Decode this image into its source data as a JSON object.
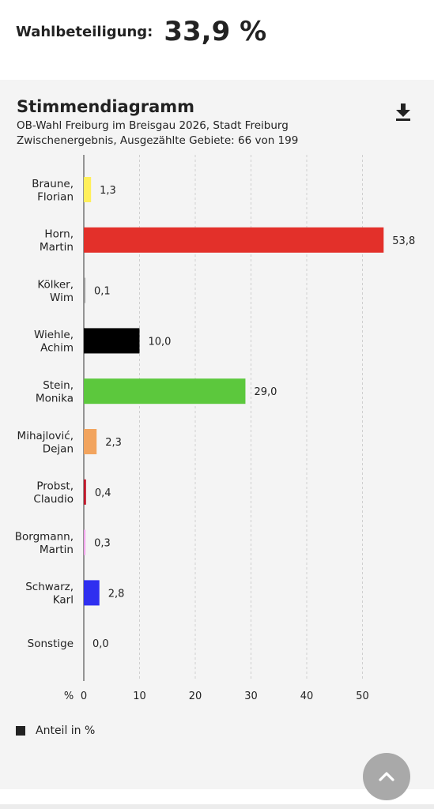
{
  "turnout": {
    "label": "Wahlbeteiligung:",
    "value": "33,9 %"
  },
  "card": {
    "title": "Stimmendiagramm",
    "subtitle_line1": "OB-Wahl Freiburg im Breisgau 2026, Stadt Freiburg",
    "subtitle_line2": "Zwischenergebnis, Ausgezählte Gebiete: 66 von 199",
    "download_icon": "download-icon",
    "scroll_top_icon": "chevron-up-icon"
  },
  "legend": {
    "label": "Anteil in %"
  },
  "chart_data": {
    "type": "bar",
    "orientation": "horizontal",
    "categories": [
      [
        "Braune,",
        "Florian"
      ],
      [
        "Horn,",
        "Martin"
      ],
      [
        "Kölker,",
        "Wim"
      ],
      [
        "Wiehle,",
        "Achim"
      ],
      [
        "Stein,",
        "Monika"
      ],
      [
        "Mihajlović,",
        "Dejan"
      ],
      [
        "Probst,",
        "Claudio"
      ],
      [
        "Borgmann,",
        "Martin"
      ],
      [
        "Schwarz,",
        "Karl"
      ],
      [
        "Sonstige"
      ]
    ],
    "values": [
      1.3,
      53.8,
      0.1,
      10.0,
      29.0,
      2.3,
      0.4,
      0.3,
      2.8,
      0.0
    ],
    "value_labels": [
      "1,3",
      "53,8",
      "0,1",
      "10,0",
      "29,0",
      "2,3",
      "0,4",
      "0,3",
      "2,8",
      "0,0"
    ],
    "colors": [
      "#ffef5a",
      "#e3302a",
      "#9a9a9a",
      "#000000",
      "#5cc83d",
      "#f2a45e",
      "#c0182a",
      "#f3a6ee",
      "#2f2ff0",
      "#9a9a9a"
    ],
    "xlim": [
      0,
      55
    ],
    "xticks": [
      0,
      10,
      20,
      30,
      40,
      50
    ],
    "xunit": "%",
    "series": [
      {
        "name": "Anteil in %"
      }
    ],
    "grid": "vertical dashed"
  }
}
